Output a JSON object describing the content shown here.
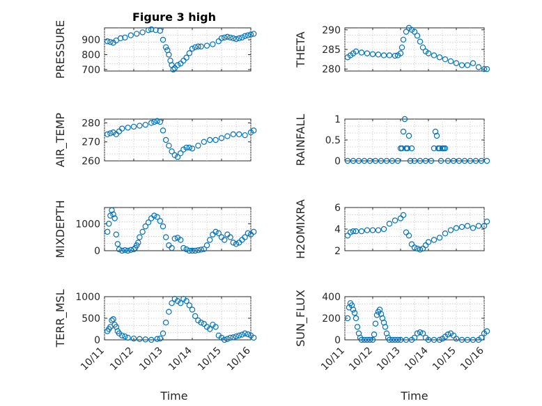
{
  "figure": {
    "title": "Figure 3 high",
    "xlabel": "Time",
    "xtick_labels": [
      "10/11",
      "10/12",
      "10/13",
      "10/14",
      "10/15",
      "10/16"
    ]
  },
  "colors": {
    "marker": "#0072BD",
    "axis": "#262626",
    "grid": "#c8c8c8"
  },
  "chart_data": [
    {
      "type": "scatter",
      "ylabel": "PRESSURE",
      "ylim": [
        690,
        980
      ],
      "yticks": [
        700,
        800,
        900
      ],
      "grid": true,
      "x": [
        0.1,
        0.2,
        0.3,
        0.4,
        0.55,
        0.7,
        0.9,
        1.1,
        1.3,
        1.5,
        1.6,
        1.75,
        1.9,
        2.0,
        2.1,
        2.15,
        2.2,
        2.25,
        2.3,
        2.35,
        2.4,
        2.5,
        2.6,
        2.7,
        2.8,
        2.9,
        3.0,
        3.1,
        3.2,
        3.3,
        3.5,
        3.7,
        3.9,
        4.0,
        4.1,
        4.2,
        4.3,
        4.4,
        4.5,
        4.6,
        4.7,
        4.8,
        4.9,
        5.0,
        5.1
      ],
      "y": [
        890,
        885,
        880,
        895,
        910,
        915,
        930,
        940,
        950,
        965,
        970,
        965,
        960,
        900,
        850,
        830,
        800,
        760,
        730,
        700,
        710,
        730,
        740,
        760,
        780,
        810,
        840,
        850,
        855,
        855,
        860,
        870,
        890,
        910,
        915,
        920,
        915,
        910,
        905,
        910,
        915,
        925,
        930,
        935,
        940
      ]
    },
    {
      "type": "scatter",
      "ylabel": "THETA",
      "ylim": [
        279.5,
        290.5
      ],
      "yticks": [
        280,
        285,
        290
      ],
      "grid": true,
      "x": [
        0.1,
        0.2,
        0.3,
        0.4,
        0.6,
        0.8,
        1.0,
        1.2,
        1.4,
        1.6,
        1.8,
        1.9,
        2.0,
        2.05,
        2.1,
        2.2,
        2.3,
        2.4,
        2.5,
        2.6,
        2.7,
        2.8,
        2.9,
        3.0,
        3.2,
        3.4,
        3.6,
        3.8,
        4.0,
        4.2,
        4.4,
        4.6,
        4.8,
        5.0,
        5.1
      ],
      "y": [
        283,
        283.5,
        284,
        284.5,
        284.2,
        284,
        283.8,
        283.7,
        283.5,
        283.5,
        283.4,
        283.5,
        284,
        285.5,
        287.5,
        289.5,
        290.5,
        290,
        289.5,
        288.5,
        287,
        285.5,
        284.5,
        284,
        283.5,
        283,
        282.5,
        282,
        281.5,
        281,
        281,
        281.5,
        280.5,
        280,
        280
      ]
    },
    {
      "type": "scatter",
      "ylabel": "AIR_TEMP",
      "ylim": [
        260,
        282
      ],
      "yticks": [
        260,
        270,
        280
      ],
      "grid": true,
      "x": [
        0.1,
        0.2,
        0.3,
        0.4,
        0.5,
        0.6,
        0.8,
        1.0,
        1.2,
        1.4,
        1.6,
        1.7,
        1.8,
        1.9,
        2.0,
        2.1,
        2.2,
        2.3,
        2.4,
        2.5,
        2.6,
        2.7,
        2.8,
        2.9,
        3.0,
        3.2,
        3.4,
        3.6,
        3.8,
        4.0,
        4.2,
        4.4,
        4.6,
        4.8,
        5.0,
        5.1
      ],
      "y": [
        274,
        274.5,
        275,
        274,
        275.5,
        277,
        277.5,
        278,
        278.5,
        279,
        280,
        280.5,
        281,
        280.5,
        276,
        271,
        268,
        265,
        263,
        262,
        264,
        266,
        267,
        267,
        266.5,
        268,
        270,
        271,
        271,
        272,
        273,
        274,
        274,
        273.5,
        275,
        276
      ]
    },
    {
      "type": "scatter",
      "ylabel": "RAINFALL",
      "ylim": [
        0,
        1
      ],
      "yticks": [
        0,
        0.5,
        1
      ],
      "grid": true,
      "x": [
        0.1,
        0.3,
        0.5,
        0.7,
        0.9,
        1.1,
        1.3,
        1.5,
        1.7,
        1.9,
        2.0,
        2.05,
        2.1,
        2.15,
        2.2,
        2.25,
        2.3,
        2.35,
        2.4,
        2.5,
        2.7,
        2.9,
        3.1,
        3.2,
        3.25,
        3.3,
        3.35,
        3.4,
        3.45,
        3.5,
        3.55,
        3.6,
        3.7,
        3.9,
        4.1,
        4.3,
        4.5,
        4.7,
        4.9,
        5.1
      ],
      "y": [
        0,
        0,
        0,
        0,
        0,
        0,
        0,
        0,
        0,
        0,
        0.3,
        0.3,
        0.7,
        1.0,
        0.3,
        0.3,
        0.6,
        0,
        0.3,
        0,
        0,
        0,
        0,
        0.3,
        0.7,
        0.6,
        0.3,
        0.3,
        0,
        0.3,
        0.3,
        0.3,
        0,
        0,
        0,
        0,
        0,
        0,
        0,
        0
      ]
    },
    {
      "type": "scatter",
      "ylabel": "MIXDEPTH",
      "ylim": [
        0,
        1600
      ],
      "yticks": [
        0,
        1000
      ],
      "grid": true,
      "x": [
        0.1,
        0.15,
        0.2,
        0.25,
        0.3,
        0.35,
        0.4,
        0.45,
        0.5,
        0.6,
        0.7,
        0.8,
        0.9,
        1.0,
        1.05,
        1.1,
        1.15,
        1.2,
        1.3,
        1.4,
        1.5,
        1.6,
        1.7,
        1.8,
        1.9,
        2.0,
        2.1,
        2.2,
        2.3,
        2.4,
        2.5,
        2.6,
        2.7,
        2.8,
        2.9,
        3.0,
        3.1,
        3.2,
        3.3,
        3.4,
        3.5,
        3.6,
        3.7,
        3.8,
        3.9,
        4.0,
        4.1,
        4.2,
        4.3,
        4.4,
        4.5,
        4.6,
        4.7,
        4.8,
        4.9,
        5.0,
        5.1
      ],
      "y": [
        700,
        1000,
        1300,
        1500,
        1350,
        1200,
        600,
        250,
        50,
        0,
        20,
        0,
        30,
        50,
        100,
        200,
        300,
        500,
        700,
        900,
        1050,
        1200,
        1300,
        1250,
        1100,
        900,
        500,
        200,
        100,
        450,
        480,
        400,
        100,
        50,
        0,
        0,
        0,
        20,
        40,
        60,
        200,
        400,
        600,
        700,
        650,
        500,
        400,
        600,
        500,
        300,
        250,
        300,
        400,
        500,
        650,
        600,
        700
      ]
    },
    {
      "type": "scatter",
      "ylabel": "H2OMIXRA",
      "ylim": [
        2,
        6
      ],
      "yticks": [
        2,
        4,
        6
      ],
      "grid": true,
      "x": [
        0.1,
        0.2,
        0.3,
        0.4,
        0.6,
        0.8,
        1.0,
        1.2,
        1.4,
        1.6,
        1.8,
        2.0,
        2.1,
        2.2,
        2.3,
        2.4,
        2.5,
        2.6,
        2.7,
        2.8,
        2.9,
        3.0,
        3.2,
        3.4,
        3.6,
        3.8,
        4.0,
        4.2,
        4.4,
        4.6,
        4.8,
        5.0,
        5.1
      ],
      "y": [
        3.4,
        3.7,
        3.8,
        3.8,
        3.8,
        3.9,
        3.9,
        3.9,
        4.0,
        4.5,
        4.8,
        5.0,
        5.3,
        3.7,
        3.4,
        2.6,
        2.3,
        2.2,
        2.1,
        2.2,
        2.5,
        2.8,
        3.0,
        3.2,
        3.6,
        3.9,
        4.1,
        4.2,
        4.3,
        4.1,
        4.3,
        4.3,
        4.7
      ]
    },
    {
      "type": "scatter",
      "ylabel": "TERR_MSL",
      "ylim": [
        0,
        1000
      ],
      "yticks": [
        0,
        500,
        1000
      ],
      "grid": true,
      "x": [
        0.1,
        0.15,
        0.2,
        0.25,
        0.3,
        0.35,
        0.4,
        0.45,
        0.5,
        0.6,
        0.7,
        0.8,
        1.0,
        1.2,
        1.4,
        1.6,
        1.8,
        1.9,
        2.0,
        2.1,
        2.2,
        2.3,
        2.4,
        2.5,
        2.6,
        2.7,
        2.8,
        2.9,
        3.0,
        3.1,
        3.2,
        3.3,
        3.4,
        3.5,
        3.6,
        3.7,
        3.8,
        3.9,
        4.0,
        4.1,
        4.2,
        4.3,
        4.4,
        4.5,
        4.6,
        4.7,
        4.8,
        4.9,
        5.0,
        5.1
      ],
      "y": [
        200,
        250,
        300,
        450,
        480,
        350,
        300,
        200,
        150,
        100,
        80,
        50,
        30,
        20,
        10,
        0,
        20,
        30,
        150,
        400,
        650,
        850,
        950,
        900,
        850,
        950,
        900,
        800,
        700,
        550,
        450,
        400,
        370,
        300,
        250,
        350,
        300,
        100,
        50,
        0,
        20,
        50,
        60,
        80,
        100,
        120,
        150,
        130,
        100,
        50
      ]
    },
    {
      "type": "scatter",
      "ylabel": "SUN_FLUX",
      "ylim": [
        0,
        400
      ],
      "yticks": [
        0,
        200,
        400
      ],
      "grid": true,
      "x": [
        0.1,
        0.15,
        0.2,
        0.25,
        0.3,
        0.35,
        0.4,
        0.45,
        0.5,
        0.55,
        0.6,
        0.7,
        0.8,
        0.9,
        1.0,
        1.05,
        1.1,
        1.15,
        1.2,
        1.25,
        1.3,
        1.35,
        1.4,
        1.45,
        1.5,
        1.55,
        1.6,
        1.7,
        1.8,
        1.9,
        2.0,
        2.2,
        2.4,
        2.5,
        2.6,
        2.7,
        2.8,
        2.9,
        3.0,
        3.2,
        3.4,
        3.5,
        3.6,
        3.7,
        3.8,
        3.9,
        4.0,
        4.2,
        4.4,
        4.6,
        4.8,
        4.9,
        5.0,
        5.1
      ],
      "y": [
        200,
        300,
        340,
        320,
        280,
        250,
        200,
        120,
        60,
        20,
        0,
        0,
        0,
        0,
        0,
        50,
        150,
        230,
        260,
        280,
        240,
        200,
        160,
        120,
        60,
        20,
        0,
        0,
        0,
        0,
        0,
        0,
        0,
        20,
        60,
        70,
        60,
        20,
        0,
        0,
        0,
        10,
        30,
        50,
        60,
        40,
        10,
        0,
        0,
        0,
        0,
        20,
        60,
        80
      ]
    }
  ]
}
